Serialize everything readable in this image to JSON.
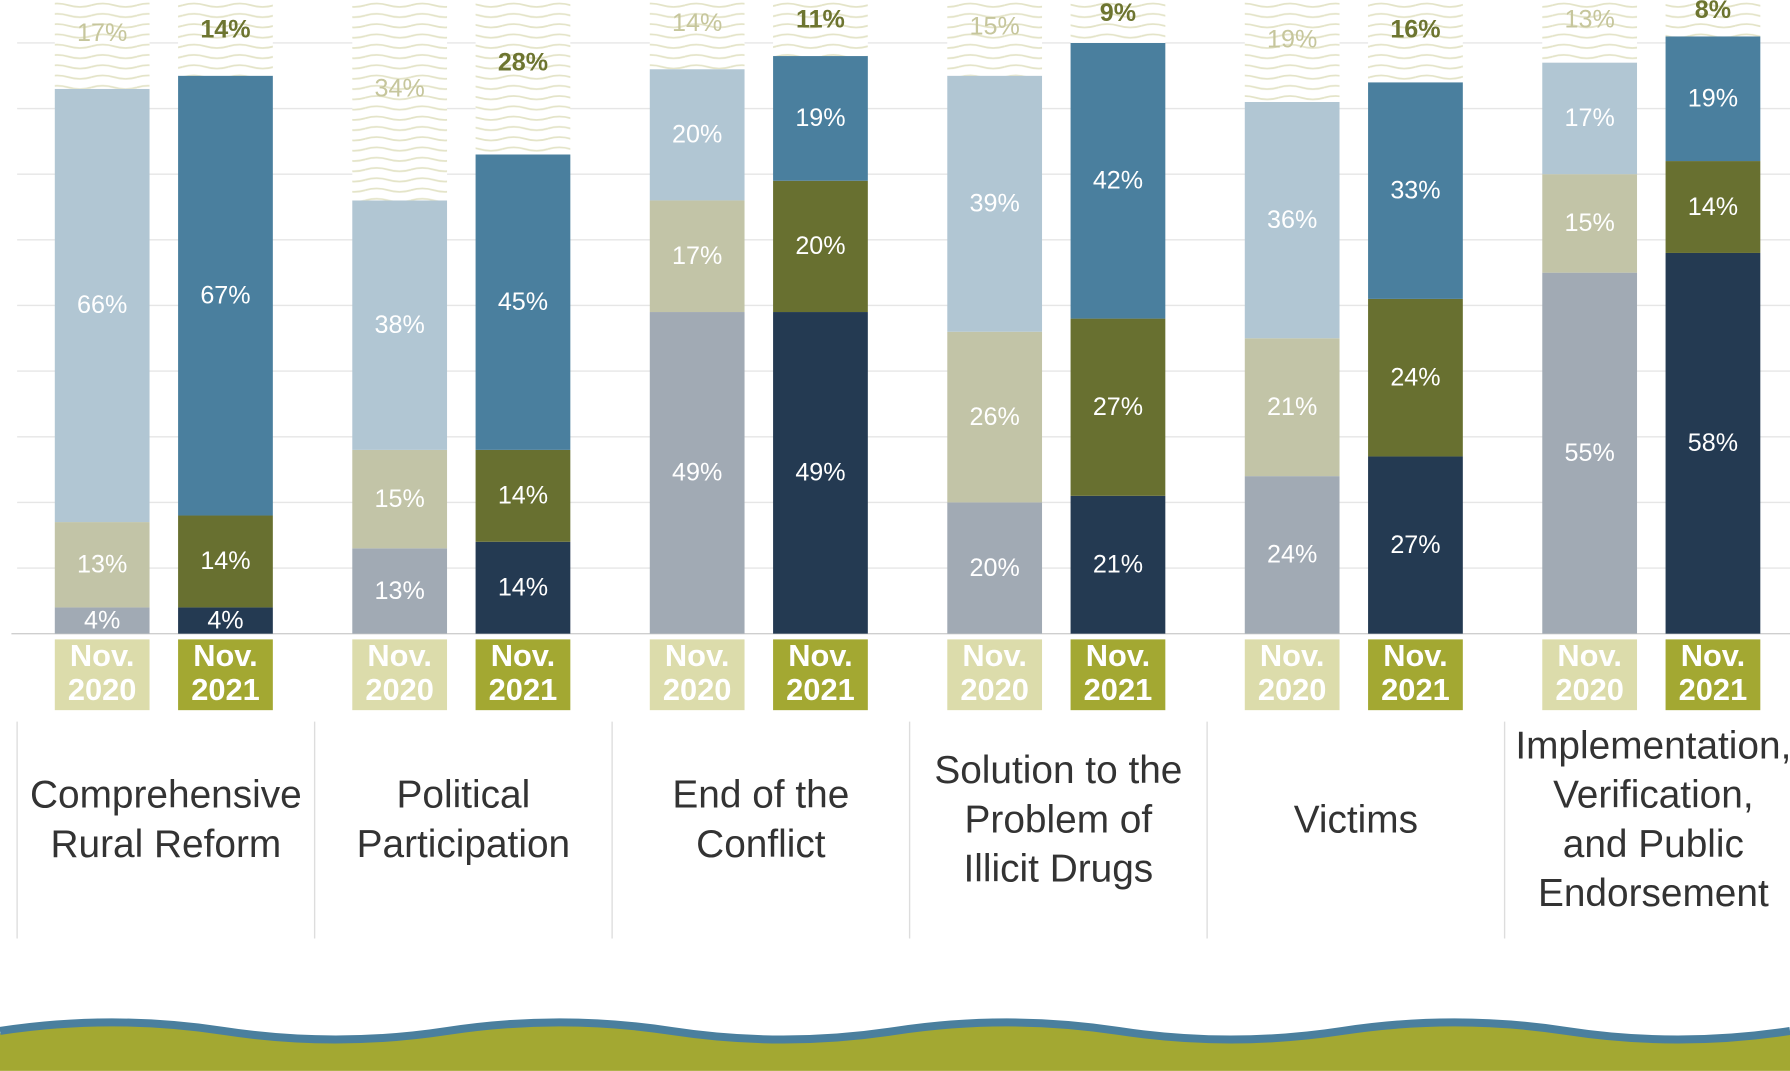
{
  "chart_data": {
    "type": "stacked-bar",
    "categories": [
      [
        "Comprehensive",
        "Rural Reform"
      ],
      [
        "Political",
        "Participation"
      ],
      [
        "End of the",
        "Conflict"
      ],
      [
        "Solution to the",
        "Problem of",
        "Illicit Drugs"
      ],
      [
        "Victims"
      ],
      [
        "Implementation,",
        "Verification,",
        "and Public",
        "Endorsement"
      ]
    ],
    "ylim": [
      0,
      100
    ],
    "yticks": [
      0,
      10,
      20,
      30,
      40,
      50,
      60,
      70,
      80,
      90,
      100
    ],
    "grid": true,
    "bars": [
      {
        "label": [
          "Nov.",
          "2020"
        ],
        "label_background": "#dcdcab",
        "series": [
          {
            "color": "#a1aab4",
            "label_color": "#ffffff",
            "values": [
              4,
              13,
              49,
              20,
              24,
              55
            ],
            "value_labels": [
              "4%",
              "13%",
              "49%",
              "20%",
              "24%",
              "55%"
            ]
          },
          {
            "color": "#c2c4a7",
            "label_color": "#ffffff",
            "values": [
              13,
              15,
              17,
              26,
              21,
              15
            ],
            "value_labels": [
              "13%",
              "15%",
              "17%",
              "26%",
              "21%",
              "15%"
            ]
          },
          {
            "color": "#b1c6d3",
            "label_color": "#ffffff",
            "values": [
              66,
              38,
              20,
              39,
              36,
              17
            ],
            "value_labels": [
              "66%",
              "38%",
              "20%",
              "39%",
              "36%",
              "17%"
            ]
          },
          {
            "color": "#e4e4c8",
            "pattern": true,
            "label_color": "#c6c69c",
            "values": [
              17,
              34,
              14,
              15,
              19,
              13
            ],
            "value_labels": [
              "17%",
              "34%",
              "14%",
              "15%",
              "19%",
              "13%"
            ]
          }
        ]
      },
      {
        "label": [
          "Nov.",
          "2021"
        ],
        "label_background": "#a3a832",
        "series": [
          {
            "color": "#243a52",
            "label_color": "#ffffff",
            "values": [
              4,
              14,
              49,
              21,
              27,
              58
            ],
            "value_labels": [
              "4%",
              "14%",
              "49%",
              "21%",
              "27%",
              "58%"
            ]
          },
          {
            "color": "#687030",
            "label_color": "#ffffff",
            "values": [
              14,
              14,
              20,
              27,
              24,
              14
            ],
            "value_labels": [
              "14%",
              "14%",
              "20%",
              "27%",
              "24%",
              "14%"
            ]
          },
          {
            "color": "#4a7f9e",
            "label_color": "#ffffff",
            "values": [
              67,
              45,
              19,
              42,
              33,
              19
            ],
            "value_labels": [
              "67%",
              "45%",
              "19%",
              "42%",
              "33%",
              "19%"
            ]
          },
          {
            "color": "#e4e4c8",
            "pattern": true,
            "label_color": "#6d7530",
            "values": [
              14,
              28,
              11,
              9,
              16,
              8
            ],
            "value_labels": [
              "14%",
              "28%",
              "11%",
              "9%",
              "16%",
              "8%"
            ]
          }
        ]
      }
    ]
  }
}
